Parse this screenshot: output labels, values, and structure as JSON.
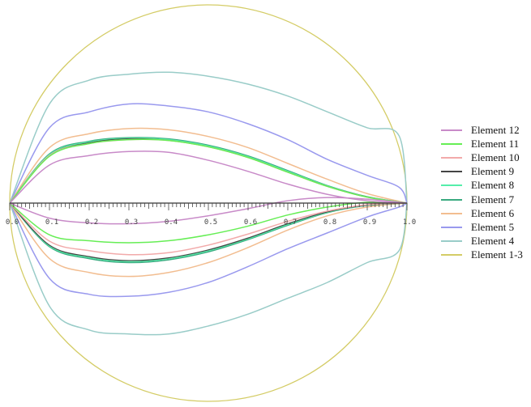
{
  "chart_data": {
    "type": "line",
    "title": "",
    "xlabel": "",
    "ylabel": "",
    "xlim": [
      0,
      1
    ],
    "ylim": [
      -0.5,
      0.5
    ],
    "x_ticks": [
      {
        "value": 0.0,
        "label": "0.0"
      },
      {
        "value": 0.1,
        "label": "0.1"
      },
      {
        "value": 0.2,
        "label": "0.2"
      },
      {
        "value": 0.3,
        "label": "0.3"
      },
      {
        "value": 0.4,
        "label": "0.4"
      },
      {
        "value": 0.5,
        "label": "0.5"
      },
      {
        "value": 0.6,
        "label": "0.6"
      },
      {
        "value": 0.7,
        "label": "0.7"
      },
      {
        "value": 0.8,
        "label": "0.8"
      },
      {
        "value": 0.9,
        "label": "0.9"
      },
      {
        "value": 1.0,
        "label": "1.0"
      }
    ],
    "grid": false,
    "legend_position": "right",
    "series": [
      {
        "name": "Element 12",
        "color": "#c88ac8",
        "upper": [
          [
            0,
            0
          ],
          [
            0.1,
            0.096
          ],
          [
            0.2,
            0.12
          ],
          [
            0.3,
            0.13
          ],
          [
            0.4,
            0.128
          ],
          [
            0.5,
            0.108
          ],
          [
            0.6,
            0.08
          ],
          [
            0.7,
            0.048
          ],
          [
            0.8,
            0.022
          ],
          [
            0.9,
            0.006
          ],
          [
            1.0,
            0
          ]
        ],
        "lower": [
          [
            0,
            0
          ],
          [
            0.1,
            -0.038
          ],
          [
            0.2,
            -0.05
          ],
          [
            0.3,
            -0.052
          ],
          [
            0.4,
            -0.046
          ],
          [
            0.5,
            -0.032
          ],
          [
            0.6,
            -0.014
          ],
          [
            0.7,
            0.006
          ],
          [
            0.8,
            0.014
          ],
          [
            0.9,
            0.01
          ],
          [
            1.0,
            0
          ]
        ]
      },
      {
        "name": "Element 11",
        "color": "#66ee55",
        "upper": [
          [
            0,
            0
          ],
          [
            0.1,
            0.118
          ],
          [
            0.2,
            0.15
          ],
          [
            0.3,
            0.16
          ],
          [
            0.4,
            0.158
          ],
          [
            0.5,
            0.142
          ],
          [
            0.6,
            0.115
          ],
          [
            0.7,
            0.078
          ],
          [
            0.8,
            0.042
          ],
          [
            0.9,
            0.015
          ],
          [
            1.0,
            0
          ]
        ],
        "lower": [
          [
            0,
            0
          ],
          [
            0.1,
            -0.08
          ],
          [
            0.2,
            -0.095
          ],
          [
            0.3,
            -0.1
          ],
          [
            0.4,
            -0.095
          ],
          [
            0.5,
            -0.08
          ],
          [
            0.6,
            -0.058
          ],
          [
            0.7,
            -0.03
          ],
          [
            0.8,
            -0.01
          ],
          [
            0.9,
            0.002
          ],
          [
            1.0,
            0
          ]
        ]
      },
      {
        "name": "Element 10",
        "color": "#f2aaaa",
        "upper": [
          [
            0,
            0
          ],
          [
            0.1,
            0.12
          ],
          [
            0.2,
            0.15
          ],
          [
            0.3,
            0.16
          ],
          [
            0.4,
            0.158
          ],
          [
            0.5,
            0.142
          ],
          [
            0.6,
            0.115
          ],
          [
            0.7,
            0.078
          ],
          [
            0.8,
            0.042
          ],
          [
            0.9,
            0.015
          ],
          [
            1.0,
            0
          ]
        ],
        "lower": [
          [
            0,
            0
          ],
          [
            0.1,
            -0.096
          ],
          [
            0.2,
            -0.12
          ],
          [
            0.3,
            -0.13
          ],
          [
            0.4,
            -0.125
          ],
          [
            0.5,
            -0.106
          ],
          [
            0.6,
            -0.078
          ],
          [
            0.7,
            -0.046
          ],
          [
            0.8,
            -0.02
          ],
          [
            0.9,
            -0.004
          ],
          [
            1.0,
            0
          ]
        ]
      },
      {
        "name": "Element 9",
        "color": "#444444",
        "upper": [
          [
            0,
            0
          ],
          [
            0.1,
            0.12
          ],
          [
            0.2,
            0.152
          ],
          [
            0.3,
            0.162
          ],
          [
            0.4,
            0.158
          ],
          [
            0.5,
            0.142
          ],
          [
            0.6,
            0.115
          ],
          [
            0.7,
            0.078
          ],
          [
            0.8,
            0.042
          ],
          [
            0.9,
            0.015
          ],
          [
            1.0,
            0
          ]
        ],
        "lower": [
          [
            0,
            0
          ],
          [
            0.1,
            -0.106
          ],
          [
            0.2,
            -0.135
          ],
          [
            0.3,
            -0.145
          ],
          [
            0.4,
            -0.138
          ],
          [
            0.5,
            -0.118
          ],
          [
            0.6,
            -0.088
          ],
          [
            0.7,
            -0.052
          ],
          [
            0.8,
            -0.022
          ],
          [
            0.9,
            -0.005
          ],
          [
            1.0,
            0
          ]
        ]
      },
      {
        "name": "Element 8",
        "color": "#55eeaa",
        "upper": [
          [
            0,
            0
          ],
          [
            0.1,
            0.122
          ],
          [
            0.2,
            0.154
          ],
          [
            0.3,
            0.163
          ],
          [
            0.4,
            0.16
          ],
          [
            0.5,
            0.144
          ],
          [
            0.6,
            0.117
          ],
          [
            0.7,
            0.08
          ],
          [
            0.8,
            0.043
          ],
          [
            0.9,
            0.015
          ],
          [
            1.0,
            0
          ]
        ],
        "lower": [
          [
            0,
            0
          ],
          [
            0.1,
            -0.108
          ],
          [
            0.2,
            -0.137
          ],
          [
            0.3,
            -0.147
          ],
          [
            0.4,
            -0.14
          ],
          [
            0.5,
            -0.12
          ],
          [
            0.6,
            -0.09
          ],
          [
            0.7,
            -0.054
          ],
          [
            0.8,
            -0.023
          ],
          [
            0.9,
            -0.005
          ],
          [
            1.0,
            0
          ]
        ]
      },
      {
        "name": "Element 7",
        "color": "#3aaa80",
        "upper": [
          [
            0,
            0
          ],
          [
            0.1,
            0.124
          ],
          [
            0.2,
            0.156
          ],
          [
            0.3,
            0.165
          ],
          [
            0.4,
            0.162
          ],
          [
            0.5,
            0.146
          ],
          [
            0.6,
            0.119
          ],
          [
            0.7,
            0.082
          ],
          [
            0.8,
            0.044
          ],
          [
            0.9,
            0.016
          ],
          [
            1.0,
            0
          ]
        ],
        "lower": [
          [
            0,
            0
          ],
          [
            0.1,
            -0.11
          ],
          [
            0.2,
            -0.14
          ],
          [
            0.3,
            -0.15
          ],
          [
            0.4,
            -0.143
          ],
          [
            0.5,
            -0.123
          ],
          [
            0.6,
            -0.092
          ],
          [
            0.7,
            -0.056
          ],
          [
            0.8,
            -0.024
          ],
          [
            0.9,
            -0.006
          ],
          [
            1.0,
            0
          ]
        ]
      },
      {
        "name": "Element 6",
        "color": "#f2bd90",
        "upper": [
          [
            0,
            0
          ],
          [
            0.1,
            0.14
          ],
          [
            0.2,
            0.175
          ],
          [
            0.3,
            0.188
          ],
          [
            0.4,
            0.185
          ],
          [
            0.5,
            0.168
          ],
          [
            0.6,
            0.14
          ],
          [
            0.7,
            0.1
          ],
          [
            0.8,
            0.06
          ],
          [
            0.9,
            0.024
          ],
          [
            1.0,
            0
          ]
        ],
        "lower": [
          [
            0,
            0
          ],
          [
            0.1,
            -0.14
          ],
          [
            0.2,
            -0.175
          ],
          [
            0.3,
            -0.185
          ],
          [
            0.4,
            -0.175
          ],
          [
            0.5,
            -0.15
          ],
          [
            0.6,
            -0.112
          ],
          [
            0.7,
            -0.068
          ],
          [
            0.8,
            -0.032
          ],
          [
            0.9,
            -0.01
          ],
          [
            1.0,
            0
          ]
        ]
      },
      {
        "name": "Element 5",
        "color": "#9999ee",
        "upper": [
          [
            0,
            0
          ],
          [
            0.1,
            0.19
          ],
          [
            0.2,
            0.23
          ],
          [
            0.3,
            0.25
          ],
          [
            0.4,
            0.245
          ],
          [
            0.5,
            0.23
          ],
          [
            0.6,
            0.2
          ],
          [
            0.7,
            0.16
          ],
          [
            0.8,
            0.11
          ],
          [
            0.9,
            0.07
          ],
          [
            0.98,
            0.04
          ],
          [
            1.0,
            0
          ]
        ],
        "lower": [
          [
            0,
            0
          ],
          [
            0.1,
            -0.19
          ],
          [
            0.2,
            -0.23
          ],
          [
            0.3,
            -0.235
          ],
          [
            0.4,
            -0.225
          ],
          [
            0.5,
            -0.2
          ],
          [
            0.6,
            -0.16
          ],
          [
            0.7,
            -0.115
          ],
          [
            0.8,
            -0.075
          ],
          [
            0.9,
            -0.035
          ],
          [
            0.98,
            -0.01
          ],
          [
            1.0,
            0
          ]
        ]
      },
      {
        "name": "Element 4",
        "color": "#99ccc8",
        "upper": [
          [
            0,
            0
          ],
          [
            0.1,
            0.25
          ],
          [
            0.2,
            0.31
          ],
          [
            0.3,
            0.325
          ],
          [
            0.4,
            0.33
          ],
          [
            0.5,
            0.32
          ],
          [
            0.6,
            0.3
          ],
          [
            0.7,
            0.27
          ],
          [
            0.8,
            0.23
          ],
          [
            0.9,
            0.19
          ],
          [
            0.98,
            0.17
          ],
          [
            1.0,
            0
          ]
        ],
        "lower": [
          [
            0,
            0
          ],
          [
            0.1,
            -0.26
          ],
          [
            0.2,
            -0.32
          ],
          [
            0.3,
            -0.33
          ],
          [
            0.4,
            -0.33
          ],
          [
            0.5,
            -0.31
          ],
          [
            0.6,
            -0.28
          ],
          [
            0.7,
            -0.24
          ],
          [
            0.8,
            -0.2
          ],
          [
            0.9,
            -0.15
          ],
          [
            0.98,
            -0.12
          ],
          [
            1.0,
            0
          ]
        ]
      },
      {
        "name": "Element 1-3",
        "color": "#d4cc66",
        "shape": "circle",
        "center": [
          0.5,
          0
        ],
        "radius": 0.5
      }
    ]
  }
}
